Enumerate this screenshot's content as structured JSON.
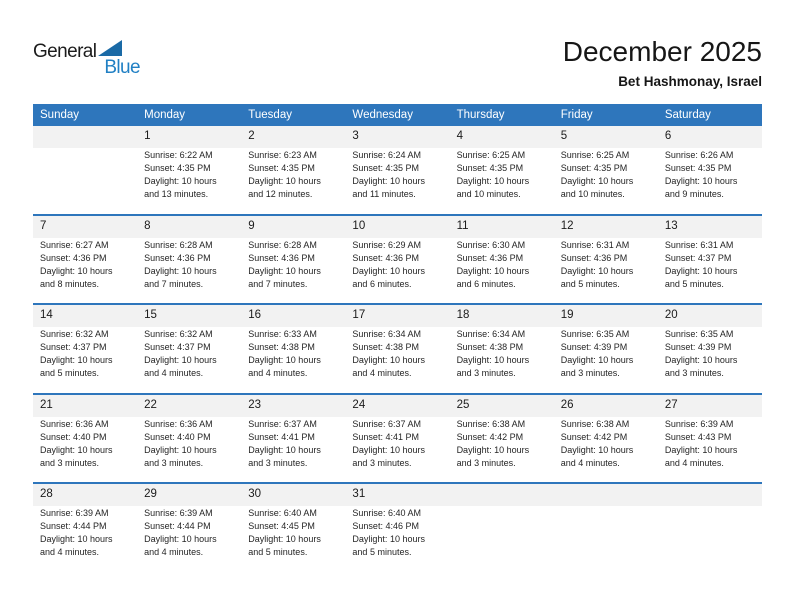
{
  "branding": {
    "logo_text_dark": "General",
    "logo_text_blue": "Blue",
    "logo_triangle_icon": "triangle-flag-icon"
  },
  "header": {
    "title": "December 2025",
    "subtitle": "Bet Hashmonay, Israel"
  },
  "colors": {
    "header_bar": "#2e76bc",
    "row_border": "#2e76bc",
    "number_band": "#f2f2f2",
    "logo_blue": "#2180c4",
    "logo_triangle": "#1a6aa6"
  },
  "calendar": {
    "weekday_headers": [
      "Sunday",
      "Monday",
      "Tuesday",
      "Wednesday",
      "Thursday",
      "Friday",
      "Saturday"
    ],
    "weeks": [
      [
        null,
        {
          "day": "1",
          "lines": [
            "Sunrise: 6:22 AM",
            "Sunset: 4:35 PM",
            "Daylight: 10 hours",
            "and 13 minutes."
          ]
        },
        {
          "day": "2",
          "lines": [
            "Sunrise: 6:23 AM",
            "Sunset: 4:35 PM",
            "Daylight: 10 hours",
            "and 12 minutes."
          ]
        },
        {
          "day": "3",
          "lines": [
            "Sunrise: 6:24 AM",
            "Sunset: 4:35 PM",
            "Daylight: 10 hours",
            "and 11 minutes."
          ]
        },
        {
          "day": "4",
          "lines": [
            "Sunrise: 6:25 AM",
            "Sunset: 4:35 PM",
            "Daylight: 10 hours",
            "and 10 minutes."
          ]
        },
        {
          "day": "5",
          "lines": [
            "Sunrise: 6:25 AM",
            "Sunset: 4:35 PM",
            "Daylight: 10 hours",
            "and 10 minutes."
          ]
        },
        {
          "day": "6",
          "lines": [
            "Sunrise: 6:26 AM",
            "Sunset: 4:35 PM",
            "Daylight: 10 hours",
            "and 9 minutes."
          ]
        }
      ],
      [
        {
          "day": "7",
          "lines": [
            "Sunrise: 6:27 AM",
            "Sunset: 4:36 PM",
            "Daylight: 10 hours",
            "and 8 minutes."
          ]
        },
        {
          "day": "8",
          "lines": [
            "Sunrise: 6:28 AM",
            "Sunset: 4:36 PM",
            "Daylight: 10 hours",
            "and 7 minutes."
          ]
        },
        {
          "day": "9",
          "lines": [
            "Sunrise: 6:28 AM",
            "Sunset: 4:36 PM",
            "Daylight: 10 hours",
            "and 7 minutes."
          ]
        },
        {
          "day": "10",
          "lines": [
            "Sunrise: 6:29 AM",
            "Sunset: 4:36 PM",
            "Daylight: 10 hours",
            "and 6 minutes."
          ]
        },
        {
          "day": "11",
          "lines": [
            "Sunrise: 6:30 AM",
            "Sunset: 4:36 PM",
            "Daylight: 10 hours",
            "and 6 minutes."
          ]
        },
        {
          "day": "12",
          "lines": [
            "Sunrise: 6:31 AM",
            "Sunset: 4:36 PM",
            "Daylight: 10 hours",
            "and 5 minutes."
          ]
        },
        {
          "day": "13",
          "lines": [
            "Sunrise: 6:31 AM",
            "Sunset: 4:37 PM",
            "Daylight: 10 hours",
            "and 5 minutes."
          ]
        }
      ],
      [
        {
          "day": "14",
          "lines": [
            "Sunrise: 6:32 AM",
            "Sunset: 4:37 PM",
            "Daylight: 10 hours",
            "and 5 minutes."
          ]
        },
        {
          "day": "15",
          "lines": [
            "Sunrise: 6:32 AM",
            "Sunset: 4:37 PM",
            "Daylight: 10 hours",
            "and 4 minutes."
          ]
        },
        {
          "day": "16",
          "lines": [
            "Sunrise: 6:33 AM",
            "Sunset: 4:38 PM",
            "Daylight: 10 hours",
            "and 4 minutes."
          ]
        },
        {
          "day": "17",
          "lines": [
            "Sunrise: 6:34 AM",
            "Sunset: 4:38 PM",
            "Daylight: 10 hours",
            "and 4 minutes."
          ]
        },
        {
          "day": "18",
          "lines": [
            "Sunrise: 6:34 AM",
            "Sunset: 4:38 PM",
            "Daylight: 10 hours",
            "and 3 minutes."
          ]
        },
        {
          "day": "19",
          "lines": [
            "Sunrise: 6:35 AM",
            "Sunset: 4:39 PM",
            "Daylight: 10 hours",
            "and 3 minutes."
          ]
        },
        {
          "day": "20",
          "lines": [
            "Sunrise: 6:35 AM",
            "Sunset: 4:39 PM",
            "Daylight: 10 hours",
            "and 3 minutes."
          ]
        }
      ],
      [
        {
          "day": "21",
          "lines": [
            "Sunrise: 6:36 AM",
            "Sunset: 4:40 PM",
            "Daylight: 10 hours",
            "and 3 minutes."
          ]
        },
        {
          "day": "22",
          "lines": [
            "Sunrise: 6:36 AM",
            "Sunset: 4:40 PM",
            "Daylight: 10 hours",
            "and 3 minutes."
          ]
        },
        {
          "day": "23",
          "lines": [
            "Sunrise: 6:37 AM",
            "Sunset: 4:41 PM",
            "Daylight: 10 hours",
            "and 3 minutes."
          ]
        },
        {
          "day": "24",
          "lines": [
            "Sunrise: 6:37 AM",
            "Sunset: 4:41 PM",
            "Daylight: 10 hours",
            "and 3 minutes."
          ]
        },
        {
          "day": "25",
          "lines": [
            "Sunrise: 6:38 AM",
            "Sunset: 4:42 PM",
            "Daylight: 10 hours",
            "and 3 minutes."
          ]
        },
        {
          "day": "26",
          "lines": [
            "Sunrise: 6:38 AM",
            "Sunset: 4:42 PM",
            "Daylight: 10 hours",
            "and 4 minutes."
          ]
        },
        {
          "day": "27",
          "lines": [
            "Sunrise: 6:39 AM",
            "Sunset: 4:43 PM",
            "Daylight: 10 hours",
            "and 4 minutes."
          ]
        }
      ],
      [
        {
          "day": "28",
          "lines": [
            "Sunrise: 6:39 AM",
            "Sunset: 4:44 PM",
            "Daylight: 10 hours",
            "and 4 minutes."
          ]
        },
        {
          "day": "29",
          "lines": [
            "Sunrise: 6:39 AM",
            "Sunset: 4:44 PM",
            "Daylight: 10 hours",
            "and 4 minutes."
          ]
        },
        {
          "day": "30",
          "lines": [
            "Sunrise: 6:40 AM",
            "Sunset: 4:45 PM",
            "Daylight: 10 hours",
            "and 5 minutes."
          ]
        },
        {
          "day": "31",
          "lines": [
            "Sunrise: 6:40 AM",
            "Sunset: 4:46 PM",
            "Daylight: 10 hours",
            "and 5 minutes."
          ]
        },
        null,
        null,
        null
      ]
    ]
  }
}
